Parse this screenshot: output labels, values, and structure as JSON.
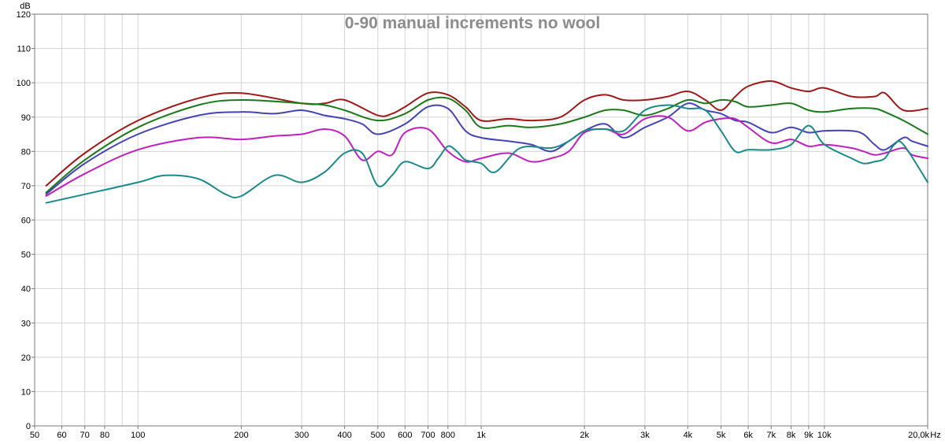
{
  "chart_data": {
    "type": "line",
    "title": "0-90 manual increments no wool",
    "ylabel": "dB",
    "xunit": "Hz",
    "xscale": "log",
    "xlim": [
      50,
      20000
    ],
    "ylim": [
      0,
      120
    ],
    "grid": true,
    "legend": "none",
    "yticks": [
      0,
      10,
      20,
      30,
      40,
      50,
      60,
      70,
      80,
      90,
      100,
      110,
      120
    ],
    "yticklabels": [
      "0",
      "10",
      "20",
      "30",
      "40",
      "50",
      "60",
      "70",
      "80",
      "90",
      "100",
      "110",
      "120"
    ],
    "xticks": [
      50,
      60,
      70,
      80,
      100,
      200,
      300,
      400,
      500,
      600,
      700,
      800,
      1000,
      2000,
      3000,
      4000,
      5000,
      6000,
      7000,
      8000,
      9000,
      10000,
      20000
    ],
    "xticklabels": [
      "50",
      "60",
      "70",
      "80",
      "100",
      "200",
      "300",
      "400",
      "500",
      "600",
      "700",
      "800",
      "1k",
      "2k",
      "3k",
      "4k",
      "5k",
      "6k",
      "7k",
      "8k",
      "9k",
      "10k",
      "20,0k"
    ],
    "xlabel_unit_label": "Hz",
    "series": [
      {
        "color": "#a01818",
        "points": [
          [
            54,
            70
          ],
          [
            70,
            79.5
          ],
          [
            100,
            89
          ],
          [
            150,
            95.5
          ],
          [
            200,
            97
          ],
          [
            300,
            94
          ],
          [
            350,
            94
          ],
          [
            400,
            95
          ],
          [
            500,
            90.5
          ],
          [
            550,
            91
          ],
          [
            600,
            93
          ],
          [
            700,
            97
          ],
          [
            800,
            96.5
          ],
          [
            900,
            93
          ],
          [
            1000,
            89
          ],
          [
            1200,
            89.5
          ],
          [
            1400,
            89
          ],
          [
            1700,
            90
          ],
          [
            2000,
            95
          ],
          [
            2300,
            96.5
          ],
          [
            2600,
            95
          ],
          [
            3000,
            95
          ],
          [
            3500,
            96
          ],
          [
            4000,
            97.5
          ],
          [
            4500,
            95
          ],
          [
            5000,
            92
          ],
          [
            5500,
            96
          ],
          [
            6000,
            99
          ],
          [
            7000,
            100.5
          ],
          [
            8000,
            98.5
          ],
          [
            9000,
            97.5
          ],
          [
            10000,
            98.5
          ],
          [
            12000,
            96
          ],
          [
            14000,
            96
          ],
          [
            15000,
            97
          ],
          [
            17000,
            92
          ],
          [
            20000,
            92.5
          ]
        ]
      },
      {
        "color": "#1a7a1a",
        "points": [
          [
            54,
            68
          ],
          [
            70,
            77.5
          ],
          [
            100,
            87
          ],
          [
            150,
            93.5
          ],
          [
            200,
            95
          ],
          [
            300,
            94
          ],
          [
            350,
            93.5
          ],
          [
            400,
            92
          ],
          [
            500,
            89
          ],
          [
            600,
            91
          ],
          [
            700,
            95
          ],
          [
            800,
            95.5
          ],
          [
            900,
            92
          ],
          [
            1000,
            87
          ],
          [
            1200,
            87.5
          ],
          [
            1400,
            87
          ],
          [
            1700,
            88
          ],
          [
            2000,
            90
          ],
          [
            2300,
            92
          ],
          [
            2600,
            92
          ],
          [
            3000,
            90.5
          ],
          [
            3500,
            92.5
          ],
          [
            4000,
            95
          ],
          [
            4500,
            94
          ],
          [
            5000,
            95
          ],
          [
            5500,
            94.5
          ],
          [
            6000,
            93
          ],
          [
            7000,
            93.5
          ],
          [
            8000,
            94
          ],
          [
            9000,
            92
          ],
          [
            10000,
            91.5
          ],
          [
            12000,
            92.5
          ],
          [
            14000,
            92.5
          ],
          [
            15000,
            91.5
          ],
          [
            17000,
            89
          ],
          [
            20000,
            85
          ]
        ]
      },
      {
        "color": "#4444b8",
        "points": [
          [
            54,
            67.5
          ],
          [
            70,
            76.5
          ],
          [
            100,
            85
          ],
          [
            150,
            90.5
          ],
          [
            200,
            91.5
          ],
          [
            250,
            91
          ],
          [
            300,
            92
          ],
          [
            350,
            90.5
          ],
          [
            400,
            89.5
          ],
          [
            450,
            88
          ],
          [
            500,
            85
          ],
          [
            600,
            88
          ],
          [
            700,
            93
          ],
          [
            800,
            92.5
          ],
          [
            900,
            86
          ],
          [
            1000,
            84
          ],
          [
            1200,
            83
          ],
          [
            1400,
            82
          ],
          [
            1600,
            80
          ],
          [
            1800,
            83
          ],
          [
            2000,
            86
          ],
          [
            2300,
            88
          ],
          [
            2600,
            84
          ],
          [
            3000,
            87
          ],
          [
            3500,
            90
          ],
          [
            4000,
            94
          ],
          [
            4500,
            92
          ],
          [
            5000,
            91
          ],
          [
            5500,
            89
          ],
          [
            6000,
            88.5
          ],
          [
            7000,
            85.5
          ],
          [
            8000,
            87
          ],
          [
            9000,
            85.5
          ],
          [
            10000,
            86
          ],
          [
            12000,
            86
          ],
          [
            13000,
            85
          ],
          [
            14000,
            82
          ],
          [
            15000,
            80.5
          ],
          [
            17000,
            84
          ],
          [
            18000,
            83
          ],
          [
            20000,
            81.5
          ]
        ]
      },
      {
        "color": "#c020c0",
        "points": [
          [
            54,
            67
          ],
          [
            70,
            73.5
          ],
          [
            100,
            80.5
          ],
          [
            150,
            84
          ],
          [
            200,
            83.5
          ],
          [
            250,
            84.5
          ],
          [
            300,
            85
          ],
          [
            350,
            86.5
          ],
          [
            400,
            84.5
          ],
          [
            450,
            77.5
          ],
          [
            500,
            80
          ],
          [
            550,
            79
          ],
          [
            600,
            85.5
          ],
          [
            700,
            86.5
          ],
          [
            800,
            80
          ],
          [
            900,
            77
          ],
          [
            1000,
            78
          ],
          [
            1200,
            79.5
          ],
          [
            1400,
            77
          ],
          [
            1600,
            78
          ],
          [
            1800,
            80
          ],
          [
            2000,
            85.5
          ],
          [
            2300,
            86.5
          ],
          [
            2600,
            85
          ],
          [
            3000,
            89.5
          ],
          [
            3500,
            90
          ],
          [
            4000,
            86
          ],
          [
            4500,
            88.5
          ],
          [
            5000,
            89.5
          ],
          [
            5500,
            89.5
          ],
          [
            6000,
            87
          ],
          [
            7000,
            82.5
          ],
          [
            8000,
            83.5
          ],
          [
            9000,
            81.5
          ],
          [
            10000,
            82
          ],
          [
            12000,
            81
          ],
          [
            13000,
            80
          ],
          [
            14000,
            79
          ],
          [
            15000,
            79.5
          ],
          [
            17000,
            81
          ],
          [
            18000,
            79
          ],
          [
            20000,
            78
          ]
        ]
      },
      {
        "color": "#1a8a8a",
        "points": [
          [
            54,
            65
          ],
          [
            70,
            67.5
          ],
          [
            100,
            71
          ],
          [
            120,
            73
          ],
          [
            150,
            72
          ],
          [
            180,
            67.5
          ],
          [
            200,
            67
          ],
          [
            250,
            73
          ],
          [
            300,
            71
          ],
          [
            350,
            74
          ],
          [
            400,
            79.5
          ],
          [
            450,
            79.5
          ],
          [
            500,
            70
          ],
          [
            550,
            73
          ],
          [
            600,
            77
          ],
          [
            700,
            75
          ],
          [
            750,
            78
          ],
          [
            800,
            81.5
          ],
          [
            850,
            80
          ],
          [
            900,
            77.5
          ],
          [
            1000,
            76.5
          ],
          [
            1100,
            74
          ],
          [
            1300,
            81
          ],
          [
            1600,
            81
          ],
          [
            1800,
            83
          ],
          [
            2000,
            86
          ],
          [
            2300,
            86.5
          ],
          [
            2600,
            86
          ],
          [
            3000,
            92
          ],
          [
            3500,
            93.5
          ],
          [
            4000,
            92.5
          ],
          [
            4500,
            92
          ],
          [
            5000,
            86
          ],
          [
            5500,
            80
          ],
          [
            6000,
            80.5
          ],
          [
            7000,
            80.5
          ],
          [
            8000,
            82
          ],
          [
            9000,
            87.5
          ],
          [
            10000,
            82
          ],
          [
            12000,
            78
          ],
          [
            13000,
            76.5
          ],
          [
            14000,
            77
          ],
          [
            15000,
            78
          ],
          [
            16000,
            82
          ],
          [
            17000,
            82
          ],
          [
            20000,
            71
          ]
        ]
      }
    ]
  }
}
